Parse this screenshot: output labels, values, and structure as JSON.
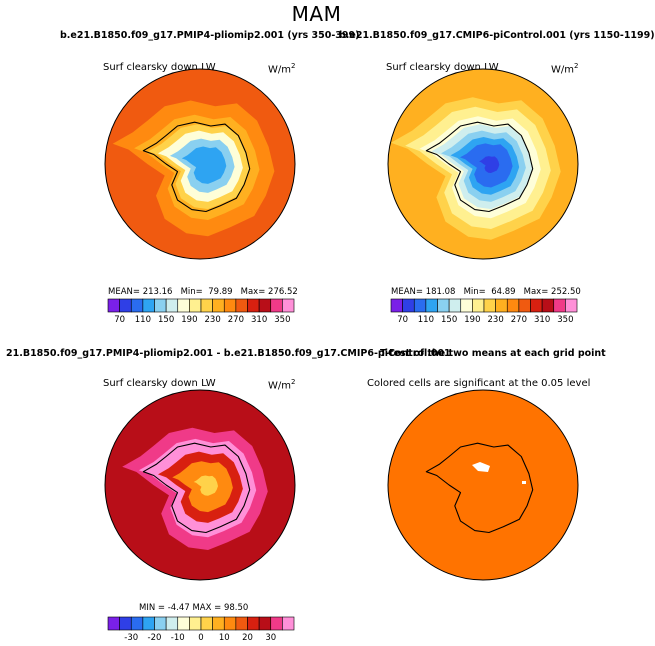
{
  "main_title": "MAM",
  "colors": {
    "abs_scale": [
      "#7a20e8",
      "#2f3fe6",
      "#2a6cf0",
      "#2ea4f2",
      "#8ad0f0",
      "#cfeeee",
      "#fefed8",
      "#fff090",
      "#ffd24a",
      "#ffb020",
      "#ff8a10",
      "#f05a10",
      "#d82010",
      "#b80e18",
      "#f03a88",
      "#ff90d8"
    ],
    "diff_scale": [
      "#7a20e8",
      "#2f3fe6",
      "#2a6cf0",
      "#2ea4f2",
      "#8ad0f0",
      "#cfeeee",
      "#fefed8",
      "#fff090",
      "#ffd24a",
      "#ffb020",
      "#ff8a10",
      "#f05a10",
      "#d82010",
      "#b80e18",
      "#f03a88",
      "#ff90d8"
    ],
    "significant": "#ff7300"
  },
  "chart_data": [
    {
      "type": "heatmap",
      "projection": "south-polar-stereographic",
      "case_title": "b.e21.B1850.f09_g17.PMIP4-pliomip2.001 (yrs 350-399)",
      "variable_label": "Surf clearsky down LW",
      "units": "W/m",
      "units_exponent": "2",
      "stats": {
        "mean_label": "MEAN=",
        "mean": "213.16",
        "min_label": "Min=",
        "min": "79.89",
        "max_label": "Max=",
        "max": "276.52"
      },
      "colorbar": {
        "levels_min": 70,
        "levels_max": 350,
        "step": 20,
        "tick_labels": [
          "70",
          "110",
          "150",
          "190",
          "230",
          "270",
          "310",
          "350"
        ]
      },
      "field_bands": [
        {
          "level": 270,
          "radius_frac": 1.0
        },
        {
          "level": 250,
          "radius_frac": 0.8
        },
        {
          "level": 230,
          "radius_frac": 0.62
        },
        {
          "level": 210,
          "radius_frac": 0.5
        },
        {
          "level": 170,
          "radius_frac": 0.42
        },
        {
          "level": 130,
          "radius_frac": 0.32
        },
        {
          "level": 110,
          "radius_frac": 0.22
        }
      ]
    },
    {
      "type": "heatmap",
      "projection": "south-polar-stereographic",
      "case_title": "b.e21.B1850.f09_g17.CMIP6-piControl.001 (yrs 1150-1199)",
      "variable_label": "Surf clearsky down LW",
      "units": "W/m",
      "units_exponent": "2",
      "stats": {
        "mean_label": "MEAN=",
        "mean": "181.08",
        "min_label": "Min=",
        "min": "64.89",
        "max_label": "Max=",
        "max": "252.50"
      },
      "colorbar": {
        "levels_min": 70,
        "levels_max": 350,
        "step": 20,
        "tick_labels": [
          "70",
          "110",
          "150",
          "190",
          "230",
          "270",
          "310",
          "350"
        ]
      },
      "field_bands": [
        {
          "level": 230,
          "radius_frac": 1.0
        },
        {
          "level": 210,
          "radius_frac": 0.84
        },
        {
          "level": 190,
          "radius_frac": 0.72
        },
        {
          "level": 170,
          "radius_frac": 0.6
        },
        {
          "level": 150,
          "radius_frac": 0.5
        },
        {
          "level": 130,
          "radius_frac": 0.42
        },
        {
          "level": 110,
          "radius_frac": 0.34
        },
        {
          "level": 90,
          "radius_frac": 0.26
        },
        {
          "level": 70,
          "radius_frac": 0.1
        }
      ]
    },
    {
      "type": "heatmap",
      "projection": "south-polar-stereographic",
      "case_title": "21.B1850.f09_g17.PMIP4-pliomip2.001 - b.e21.B1850.f09_g17.CMIP6-piControl.001",
      "variable_label": "Surf clearsky down LW",
      "units": "W/m",
      "units_exponent": "2",
      "stats": {
        "min_label": "MIN =",
        "min": "-4.47",
        "max_label": "MAX =",
        "max": "98.50"
      },
      "colorbar": {
        "levels_min": -35,
        "levels_max": 40,
        "step": 5,
        "tick_labels": [
          "-30",
          "-20",
          "-10",
          "0",
          "10",
          "20",
          "30"
        ]
      },
      "field_bands": [
        {
          "level": 25,
          "radius_frac": 1.0
        },
        {
          "level": 30,
          "radius_frac": 0.72
        },
        {
          "level": 40,
          "radius_frac": 0.58
        },
        {
          "level": 20,
          "radius_frac": 0.42
        },
        {
          "level": 10,
          "radius_frac": 0.3
        },
        {
          "level": 0,
          "radius_frac": 0.12
        }
      ]
    },
    {
      "type": "heatmap",
      "projection": "south-polar-stereographic",
      "case_title": "T-test of the two means at each grid point",
      "variable_label": "Colored cells are significant at the 0.05 level",
      "significance": "significant nearly everywhere except small interior patches"
    }
  ]
}
